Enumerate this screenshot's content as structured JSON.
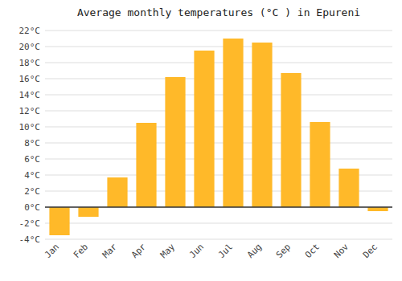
{
  "chart_data": {
    "type": "bar",
    "title": "Average monthly temperatures (°C ) in Epureni",
    "categories": [
      "Jan",
      "Feb",
      "Mar",
      "Apr",
      "May",
      "Jun",
      "Jul",
      "Aug",
      "Sep",
      "Oct",
      "Nov",
      "Dec"
    ],
    "values": [
      -3.5,
      -1.2,
      3.7,
      10.5,
      16.2,
      19.5,
      21.0,
      20.5,
      16.7,
      10.6,
      4.8,
      -0.5
    ],
    "color": "#FFB929",
    "ylim": [
      -4,
      22
    ],
    "yticks": [
      {
        "value": -4,
        "label": "-4°C"
      },
      {
        "value": -2,
        "label": "-2°C"
      },
      {
        "value": 0,
        "label": "0°C"
      },
      {
        "value": 2,
        "label": "2°C"
      },
      {
        "value": 4,
        "label": "4°C"
      },
      {
        "value": 6,
        "label": "6°C"
      },
      {
        "value": 8,
        "label": "8°C"
      },
      {
        "value": 10,
        "label": "10°C"
      },
      {
        "value": 12,
        "label": "12°C"
      },
      {
        "value": 14,
        "label": "14°C"
      },
      {
        "value": 16,
        "label": "16°C"
      },
      {
        "value": 18,
        "label": "18°C"
      },
      {
        "value": 20,
        "label": "20°C"
      },
      {
        "value": 22,
        "label": "22°C"
      }
    ],
    "grid": true
  }
}
